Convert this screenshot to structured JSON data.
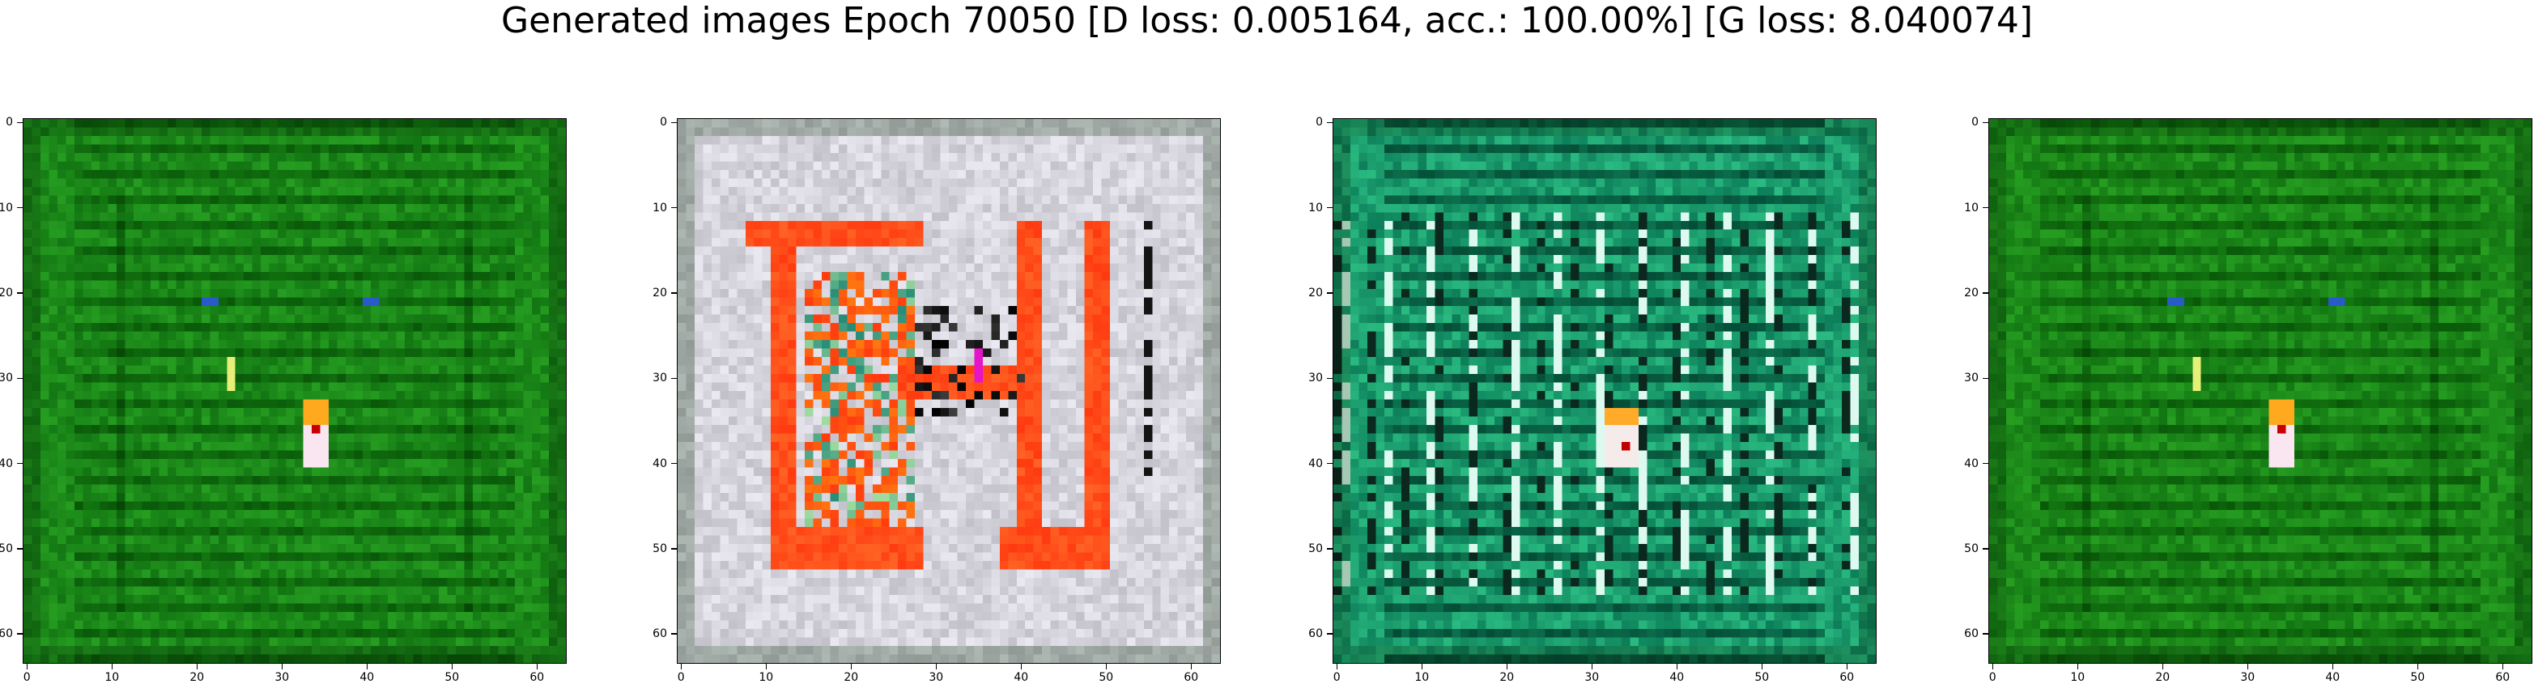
{
  "title": "Generated images Epoch 70050 [D loss: 0.005164, acc.: 100.00%] [G loss: 8.040074]",
  "axis": {
    "x_ticks": [
      "0",
      "10",
      "20",
      "30",
      "40",
      "50",
      "60"
    ],
    "y_ticks": [
      "0",
      "10",
      "20",
      "30",
      "40",
      "50",
      "60"
    ],
    "range": [
      0,
      64
    ]
  },
  "panels": [
    {
      "name": "generated-image-1",
      "style": "green"
    },
    {
      "name": "generated-image-2",
      "style": "red-frame"
    },
    {
      "name": "generated-image-3",
      "style": "teal"
    },
    {
      "name": "generated-image-4",
      "style": "green"
    }
  ],
  "colors": {
    "green": "#1a8a1a",
    "red": "#ff3a10",
    "teal": "#1fae70",
    "gray": "#d6d4dc"
  }
}
